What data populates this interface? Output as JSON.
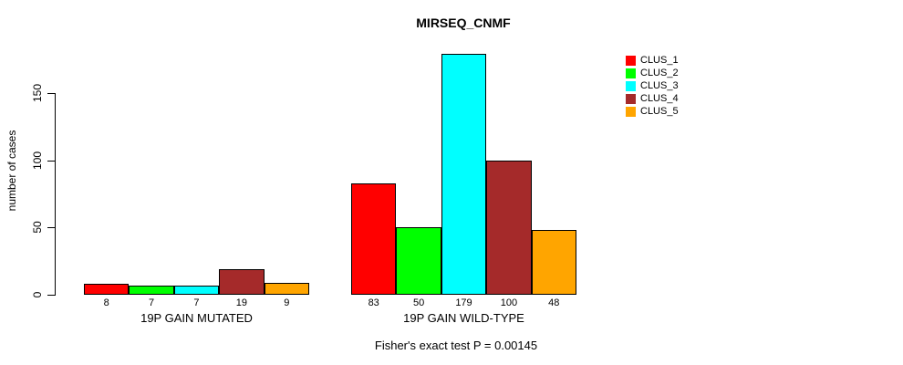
{
  "chart_data": {
    "type": "bar",
    "title": "MIRSEQ_CNMF",
    "ylabel": "number of cases",
    "xlabel": "",
    "ylim": [
      0,
      150
    ],
    "yticks": [
      0,
      50,
      100,
      150
    ],
    "grid": false,
    "legend_position": "top-right",
    "categories": [
      "19P GAIN MUTATED",
      "19P GAIN WILD-TYPE"
    ],
    "series": [
      {
        "name": "CLUS_1",
        "color": "#FF0000",
        "values": [
          8,
          83
        ]
      },
      {
        "name": "CLUS_2",
        "color": "#00FF00",
        "values": [
          7,
          50
        ]
      },
      {
        "name": "CLUS_3",
        "color": "#00FFFF",
        "values": [
          7,
          179
        ]
      },
      {
        "name": "CLUS_4",
        "color": "#A52A2A",
        "values": [
          19,
          100
        ]
      },
      {
        "name": "CLUS_5",
        "color": "#FFA500",
        "values": [
          9,
          48
        ]
      }
    ],
    "show_bar_value_labels": true,
    "annotation": "Fisher's exact test P = 0.00145"
  }
}
